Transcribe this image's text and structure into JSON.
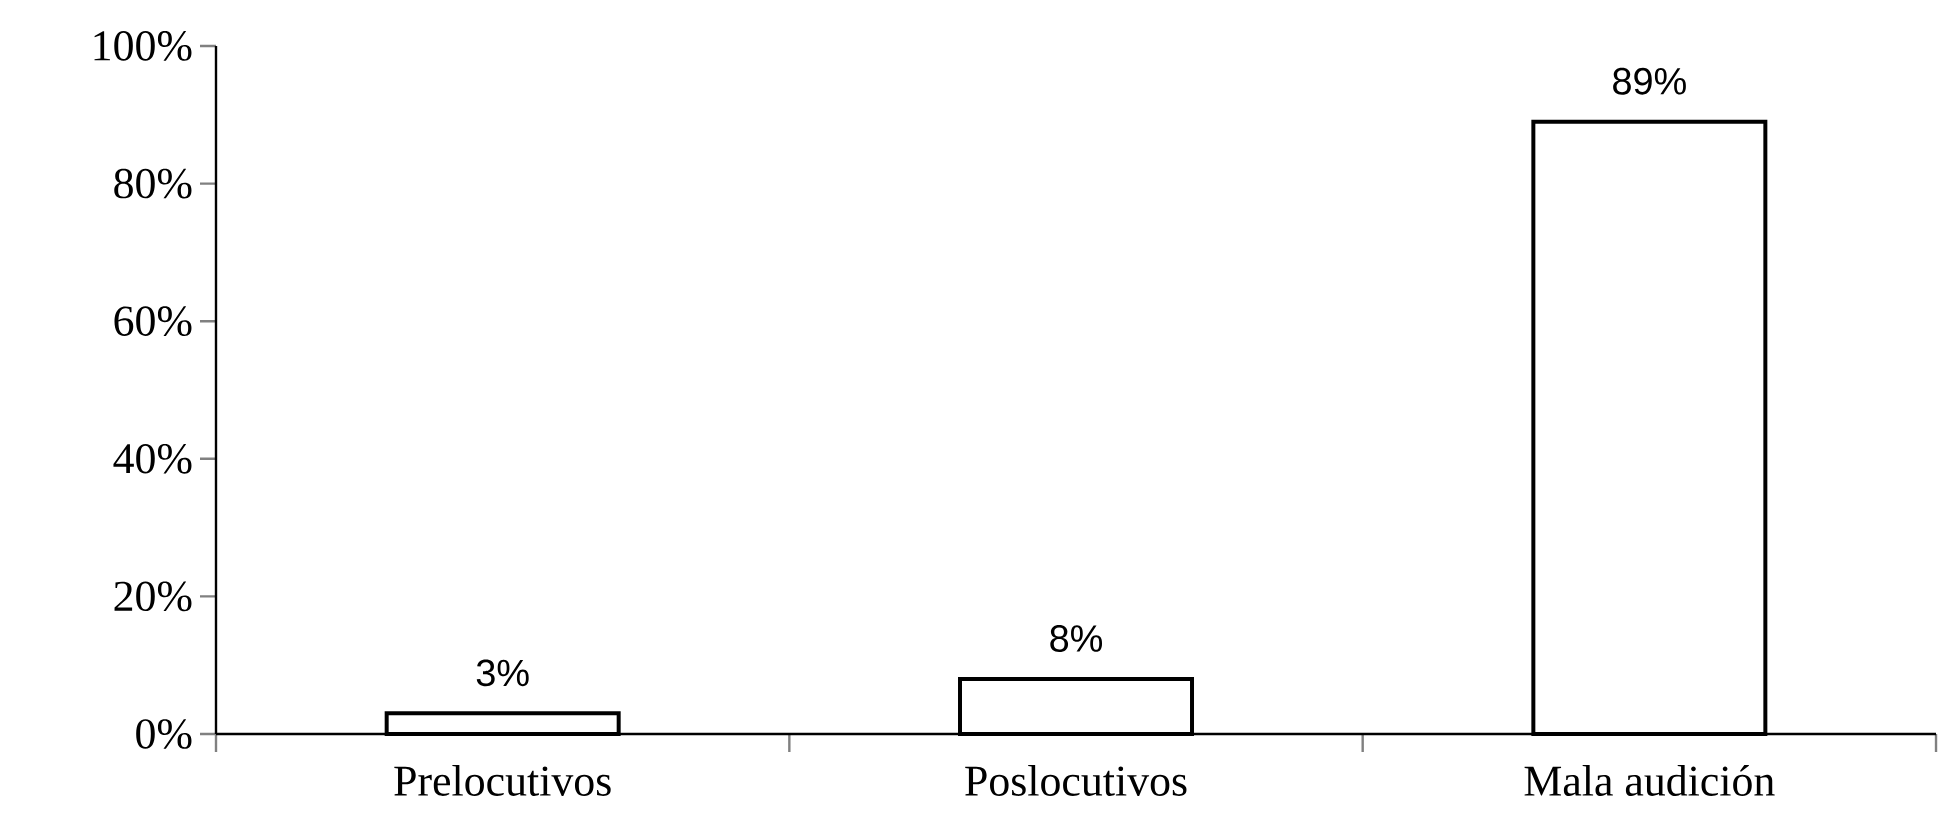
{
  "chart_data": {
    "type": "bar",
    "categories": [
      "Prelocutivos",
      "Poslocutivos",
      "Mala audición"
    ],
    "values": [
      3,
      8,
      89
    ],
    "value_labels": [
      "3%",
      "8%",
      "89%"
    ],
    "color": "#ffffff",
    "ylim": [
      0,
      100
    ],
    "yticks": [
      {
        "value": 0,
        "label": "0%"
      },
      {
        "value": 20,
        "label": "20%"
      },
      {
        "value": 40,
        "label": "40%"
      },
      {
        "value": 60,
        "label": "60%"
      },
      {
        "value": 80,
        "label": "80%"
      },
      {
        "value": 100,
        "label": "100%"
      }
    ]
  }
}
